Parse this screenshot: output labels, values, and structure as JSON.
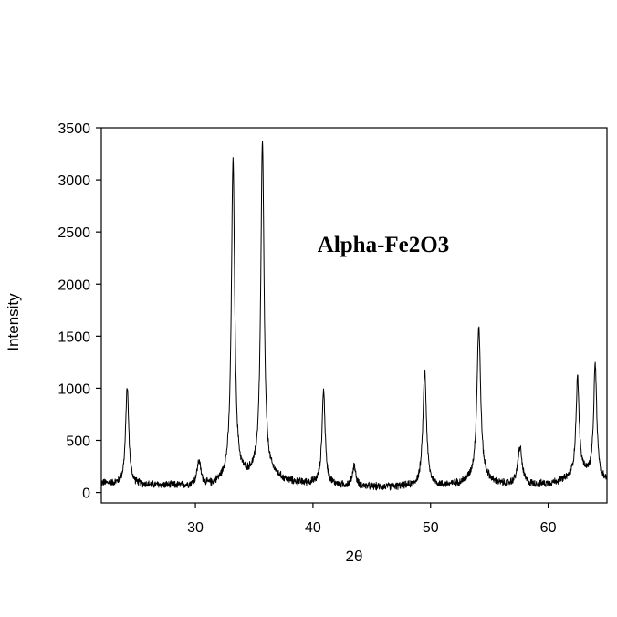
{
  "chart_data": {
    "type": "line",
    "title": "",
    "xlabel": "2θ",
    "ylabel": "Intensity",
    "xlim": [
      22,
      65
    ],
    "ylim": [
      -100,
      3500
    ],
    "x_ticks": [
      30,
      40,
      50,
      60
    ],
    "y_ticks": [
      0,
      500,
      1000,
      1500,
      2000,
      2500,
      3000,
      3500
    ],
    "grid": false,
    "legend": "none",
    "annotations": [
      "Alpha-Fe2O3"
    ],
    "line_color": "#000000",
    "baseline": [
      [
        22,
        90
      ],
      [
        23,
        80
      ],
      [
        24,
        75
      ],
      [
        26,
        70
      ],
      [
        28,
        65
      ],
      [
        30,
        60
      ],
      [
        31.5,
        65
      ],
      [
        32.5,
        110
      ],
      [
        34.5,
        140
      ],
      [
        35,
        150
      ],
      [
        36.8,
        140
      ],
      [
        37.5,
        110
      ],
      [
        38.5,
        90
      ],
      [
        40,
        80
      ],
      [
        42,
        65
      ],
      [
        44,
        55
      ],
      [
        46,
        50
      ],
      [
        48,
        55
      ],
      [
        50,
        60
      ],
      [
        51,
        60
      ],
      [
        52.5,
        80
      ],
      [
        53.5,
        110
      ],
      [
        54.8,
        110
      ],
      [
        55.5,
        80
      ],
      [
        56.5,
        70
      ],
      [
        58.5,
        70
      ],
      [
        60,
        80
      ],
      [
        61.5,
        120
      ],
      [
        62.3,
        160
      ],
      [
        63,
        180
      ],
      [
        63.6,
        150
      ],
      [
        64.5,
        120
      ],
      [
        65,
        110
      ]
    ],
    "peaks": [
      {
        "x": 24.2,
        "height": 940,
        "width": 0.16
      },
      {
        "x": 30.3,
        "height": 230,
        "width": 0.2
      },
      {
        "x": 33.2,
        "height": 3060,
        "width": 0.17
      },
      {
        "x": 35.7,
        "height": 3200,
        "width": 0.17
      },
      {
        "x": 40.9,
        "height": 900,
        "width": 0.16
      },
      {
        "x": 43.5,
        "height": 200,
        "width": 0.16
      },
      {
        "x": 49.5,
        "height": 1100,
        "width": 0.18
      },
      {
        "x": 54.1,
        "height": 1480,
        "width": 0.19
      },
      {
        "x": 57.6,
        "height": 360,
        "width": 0.22
      },
      {
        "x": 62.5,
        "height": 930,
        "width": 0.16
      },
      {
        "x": 64.0,
        "height": 1080,
        "width": 0.16
      }
    ],
    "noise_amplitude": 30
  }
}
